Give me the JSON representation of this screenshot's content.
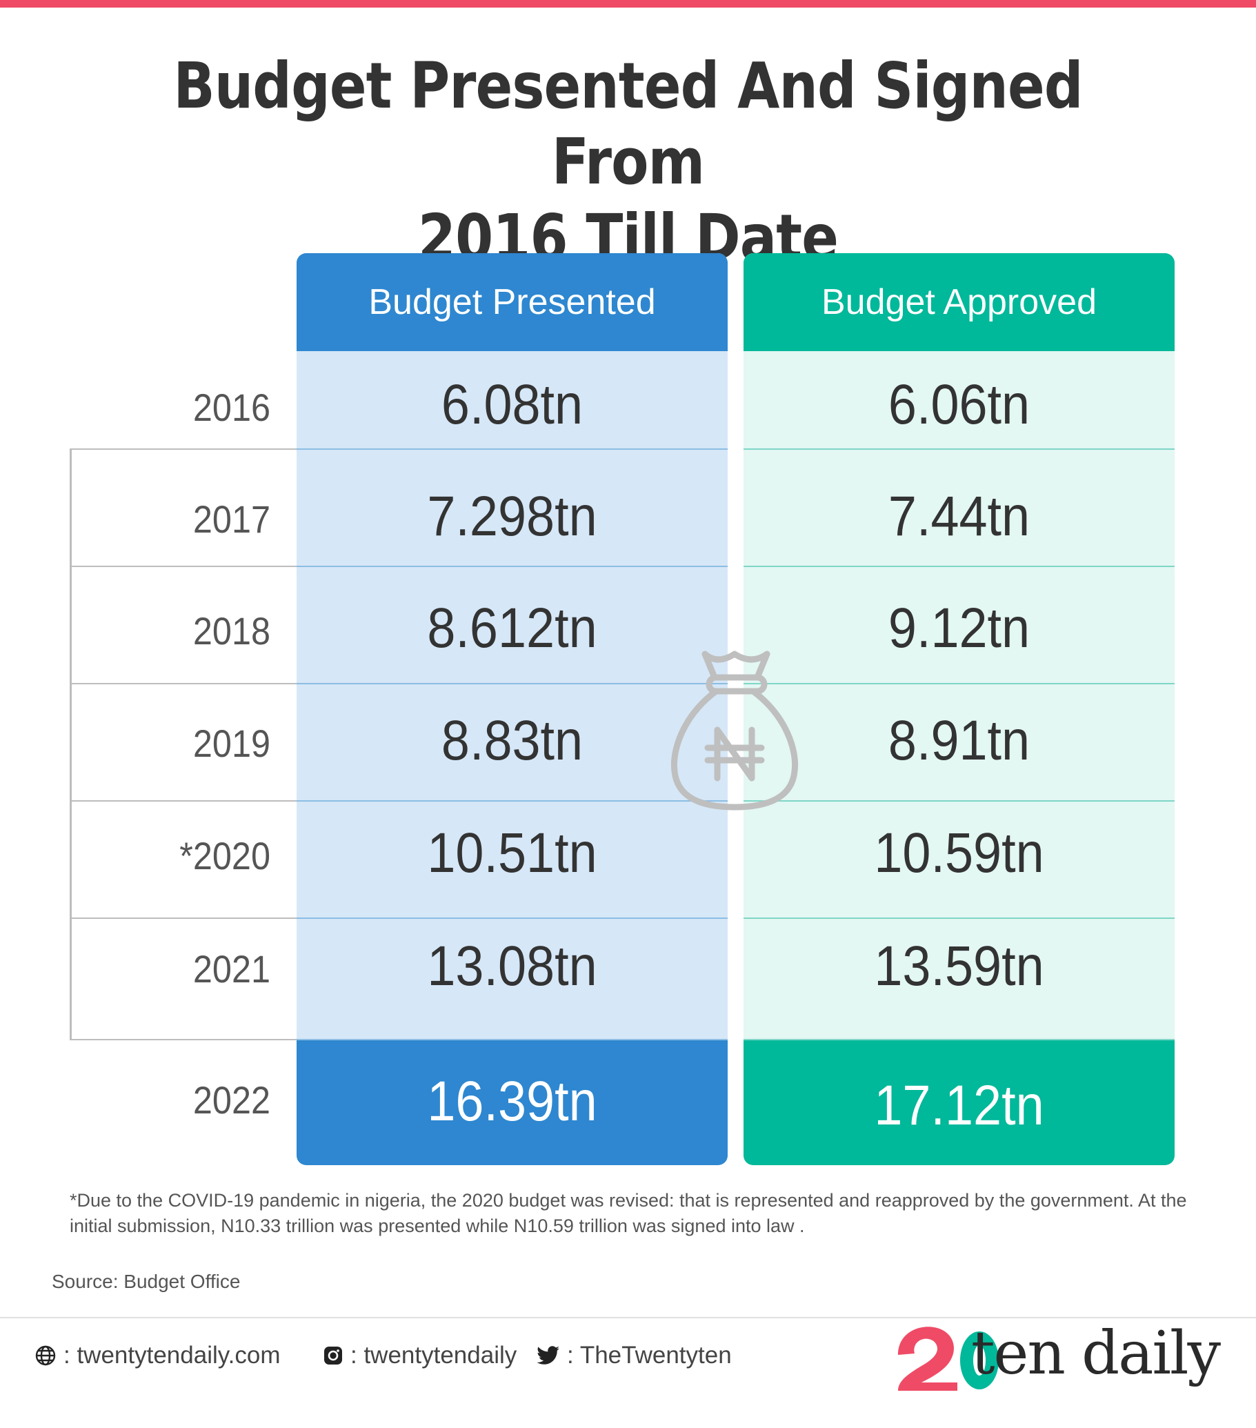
{
  "title_line1": "Budget Presented And Signed From",
  "title_line2": "2016 Till Date",
  "colors": {
    "presented": "#2e87d0",
    "approved": "#00b89a",
    "accent": "#ef4b66"
  },
  "chart_data": {
    "type": "table",
    "columns": [
      "Budget Presented",
      "Budget Approved"
    ],
    "rows": [
      {
        "year": "2016",
        "presented": "6.08tn",
        "approved": "6.06tn"
      },
      {
        "year": "2017",
        "presented": "7.298tn",
        "approved": "7.44tn"
      },
      {
        "year": "2018",
        "presented": "8.612tn",
        "approved": "9.12tn"
      },
      {
        "year": "2019",
        "presented": "8.83tn",
        "approved": "8.91tn"
      },
      {
        "year": "*2020",
        "presented": "10.51tn",
        "approved": "10.59tn"
      },
      {
        "year": "2021",
        "presented": "13.08tn",
        "approved": "13.59tn"
      },
      {
        "year": "2022",
        "presented": "16.39tn",
        "approved": "17.12tn"
      }
    ]
  },
  "footnote": "*Due to the COVID-19 pandemic in nigeria, the 2020 budget was revised: that is represented and reapproved by the government. At the initial submission, N10.33 trillion was presented while N10.59 trillion was signed into law .",
  "source": "Source: Budget Office",
  "footer": {
    "website": ": twentytendaily.com",
    "instagram": ": twentytendaily",
    "twitter": ": TheTwentyten",
    "logo_text": "ten daily",
    "icons": [
      "globe-icon",
      "instagram-icon",
      "twitter-icon",
      "money-bag-icon"
    ]
  }
}
